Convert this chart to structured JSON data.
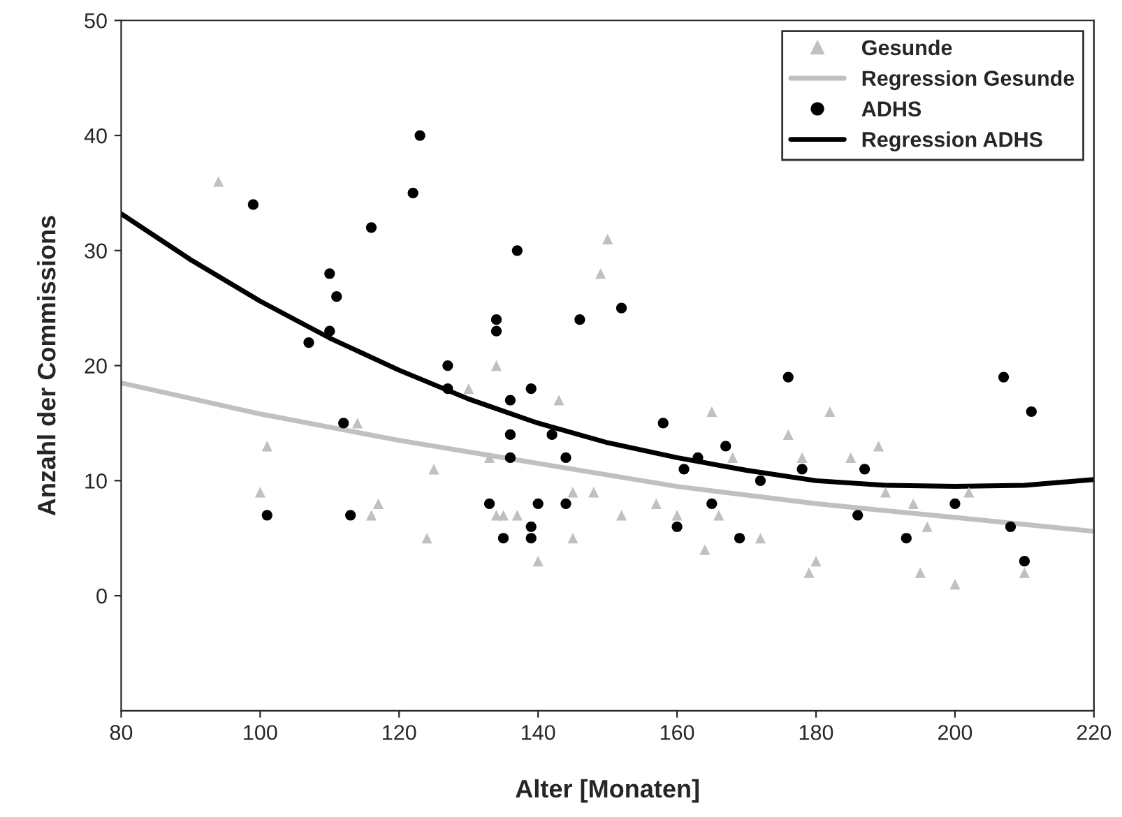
{
  "chart_data": {
    "type": "scatter",
    "xlabel": "Alter [Monaten]",
    "ylabel": "Anzahl der Commissions",
    "xlim": [
      80,
      220
    ],
    "xticks": [
      80,
      100,
      120,
      140,
      160,
      180,
      200,
      220
    ],
    "ylim": [
      -10,
      50
    ],
    "yticks": [
      0,
      10,
      20,
      30,
      40,
      50
    ],
    "grid": false,
    "legend": "top right",
    "series": [
      {
        "name": "Gesunde",
        "marker": "triangle",
        "color": "#c0c0c0",
        "x": [
          94,
          100,
          101,
          114,
          116,
          117,
          124,
          125,
          130,
          133,
          134,
          134,
          135,
          137,
          140,
          143,
          145,
          145,
          148,
          149,
          150,
          152,
          157,
          160,
          164,
          165,
          166,
          168,
          172,
          176,
          178,
          179,
          180,
          182,
          185,
          189,
          190,
          194,
          195,
          196,
          200,
          202,
          210
        ],
        "values": [
          36,
          9,
          13,
          15,
          7,
          8,
          5,
          11,
          18,
          12,
          20,
          7,
          7,
          7,
          3,
          17,
          9,
          5,
          9,
          28,
          31,
          7,
          8,
          7,
          4,
          16,
          7,
          12,
          5,
          14,
          12,
          2,
          3,
          16,
          12,
          13,
          9,
          8,
          2,
          6,
          1,
          9,
          2
        ]
      },
      {
        "name": "Regression Gesunde",
        "type": "line",
        "marker": "none",
        "color": "#c0c0c0",
        "x": [
          80,
          100,
          120,
          140,
          160,
          180,
          200,
          220
        ],
        "values": [
          18.5,
          15.8,
          13.5,
          11.5,
          9.5,
          8,
          6.8,
          5.6
        ]
      },
      {
        "name": "ADHS",
        "marker": "circle",
        "color": "#000000",
        "x": [
          99,
          101,
          107,
          110,
          110,
          111,
          112,
          113,
          116,
          122,
          123,
          127,
          127,
          133,
          134,
          134,
          135,
          136,
          136,
          136,
          137,
          139,
          139,
          139,
          140,
          142,
          144,
          144,
          146,
          152,
          158,
          160,
          161,
          163,
          165,
          167,
          169,
          172,
          176,
          178,
          186,
          187,
          193,
          200,
          207,
          208,
          210,
          211
        ],
        "values": [
          34,
          7,
          22,
          28,
          23,
          26,
          15,
          7,
          32,
          35,
          40,
          20,
          18,
          8,
          24,
          23,
          5,
          17,
          14,
          12,
          30,
          18,
          6,
          5,
          8,
          14,
          12,
          8,
          24,
          25,
          15,
          6,
          11,
          12,
          8,
          13,
          5,
          10,
          19,
          11,
          7,
          11,
          5,
          8,
          19,
          6,
          3,
          16
        ]
      },
      {
        "name": "Regression ADHS",
        "type": "line",
        "marker": "none",
        "color": "#000000",
        "x": [
          80,
          90,
          100,
          110,
          120,
          130,
          140,
          150,
          160,
          170,
          180,
          190,
          200,
          210,
          220
        ],
        "values": [
          33.2,
          29.2,
          25.6,
          22.4,
          19.6,
          17.1,
          15,
          13.3,
          12,
          10.9,
          10,
          9.6,
          9.5,
          9.6,
          10.1
        ]
      }
    ]
  }
}
